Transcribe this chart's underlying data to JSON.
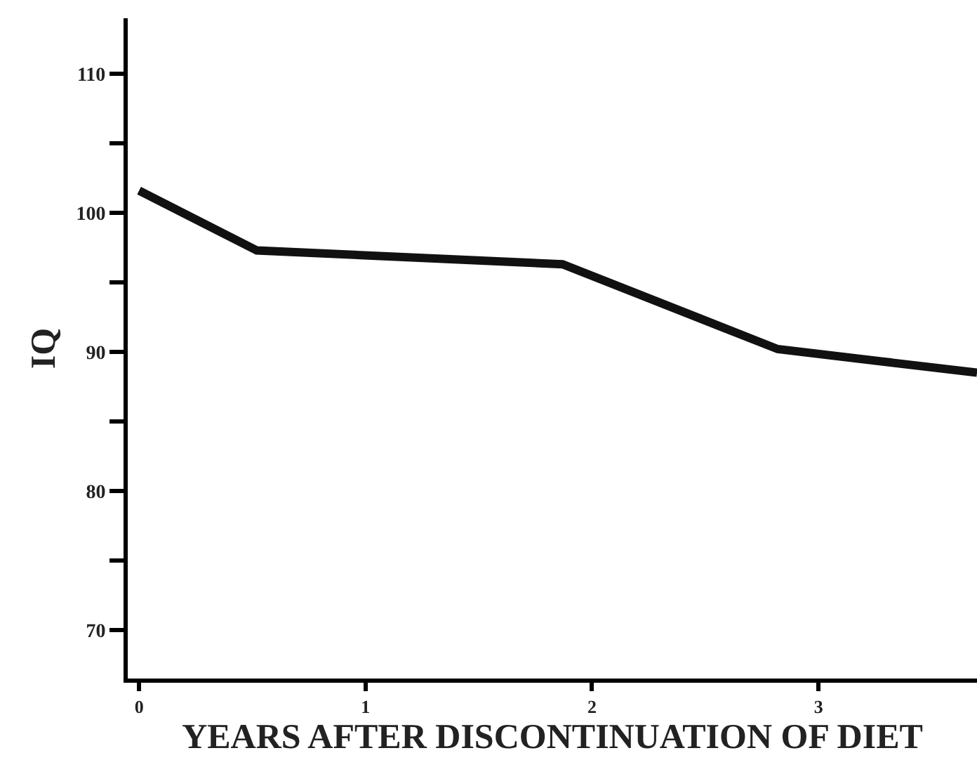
{
  "chart_data": {
    "type": "line",
    "xlabel": "YEARS AFTER DISCONTINUATION OF DIET",
    "ylabel": "IQ",
    "x": [
      0,
      0.52,
      1.87,
      2.82,
      3.7
    ],
    "series": [
      {
        "color": "#111111",
        "values": [
          101.6,
          97.3,
          96.3,
          90.2,
          88.5
        ]
      }
    ],
    "xlim": [
      -0.05,
      3.7
    ],
    "xticks": [
      0,
      1,
      2,
      3
    ],
    "ylim": [
      66.5,
      114
    ],
    "yticks": [
      70,
      {
        "value": 75,
        "label": null
      },
      80,
      {
        "value": 85,
        "label": null
      },
      90,
      {
        "value": 95,
        "label": null
      },
      100,
      {
        "value": 105,
        "label": null
      },
      110
    ],
    "legend": false,
    "marker": "none",
    "line_style": "solid"
  }
}
